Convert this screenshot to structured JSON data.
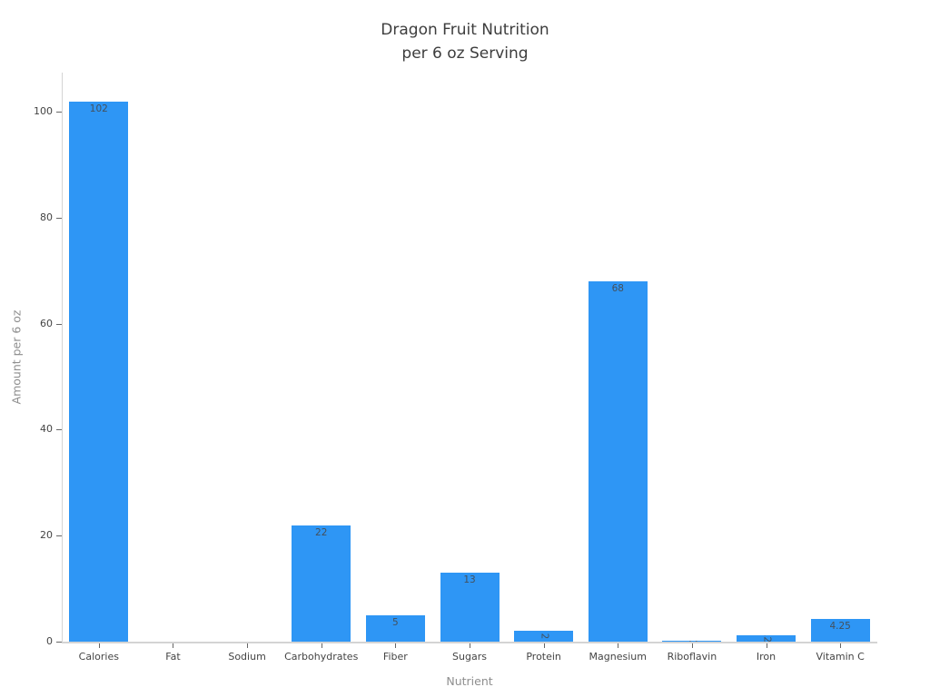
{
  "chart_data": {
    "type": "bar",
    "title": "Dragon Fruit Nutrition per 6 oz Serving",
    "title_line1": "Dragon Fruit Nutrition",
    "title_line2": "per 6 oz Serving",
    "xlabel": "Nutrient",
    "ylabel": "Amount per 6 oz",
    "categories": [
      "Calories",
      "Fat",
      "Sodium",
      "Carbohydrates",
      "Fiber",
      "Sugars",
      "Protein",
      "Magnesium",
      "Riboflavin",
      "Iron",
      "Vitamin C"
    ],
    "values": [
      102,
      0,
      0,
      22,
      5,
      13,
      2,
      68,
      0.17,
      1.26,
      4.25
    ],
    "bar_labels": [
      "102",
      "",
      "",
      "22",
      "5",
      "13",
      "2",
      "68",
      "0.17",
      "1.26",
      "4.25"
    ],
    "yticks": [
      0,
      20,
      40,
      60,
      80,
      100
    ],
    "ylim": [
      0,
      107.4
    ],
    "grid": false,
    "legend": false,
    "background": "#ffffff",
    "colors": {
      "bar": "#2E96F5",
      "title_text": "#3d3d3d",
      "tick_text": "#444444",
      "bar_label_text": "#44505c",
      "axis_title_text": "#8e8e8e",
      "axis_line": "#d4d4d4",
      "tick_mark": "#666666"
    }
  }
}
